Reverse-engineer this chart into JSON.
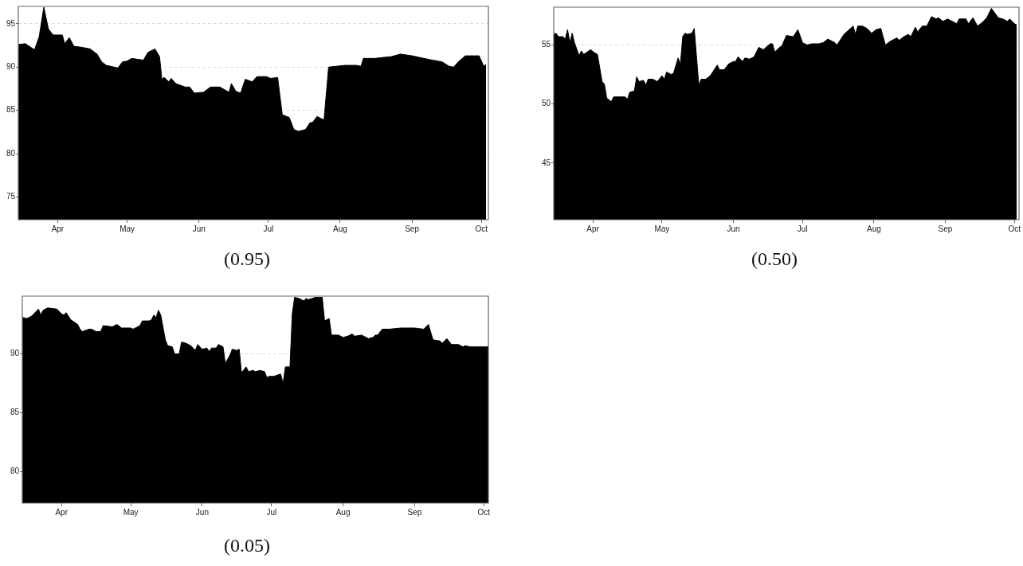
{
  "chart_data": [
    {
      "type": "area",
      "annotations": [
        "(0.95)"
      ],
      "color": "#000000",
      "grid": "y",
      "xlim": [
        "--03-15",
        "--10-04"
      ],
      "xticks": [
        {
          "value": "--04-01",
          "label": "Apr"
        },
        {
          "value": "--05-01",
          "label": "May"
        },
        {
          "value": "--06-01",
          "label": "Jun"
        },
        {
          "value": "--07-01",
          "label": "Jul"
        },
        {
          "value": "--08-01",
          "label": "Aug"
        },
        {
          "value": "--09-01",
          "label": "Sep"
        },
        {
          "value": "--10-01",
          "label": "Oct"
        }
      ],
      "ylim": [
        72.4,
        97.0
      ],
      "yticks": [
        75,
        80,
        85,
        90,
        95
      ],
      "x": [
        "--03-15",
        "--03-18",
        "--03-22",
        "--03-24",
        "--03-26",
        "--03-28",
        "--03-30",
        "--04-03",
        "--04-04",
        "--04-06",
        "--04-08",
        "--04-11",
        "--04-15",
        "--04-18",
        "--04-20",
        "--04-22",
        "--04-27",
        "--04-29",
        "--05-01",
        "--05-03",
        "--05-08",
        "--05-10",
        "--05-13",
        "--05-15",
        "--05-16",
        "--05-17",
        "--05-19",
        "--05-20",
        "--05-22",
        "--05-26",
        "--05-28",
        "--05-30",
        "--06-03",
        "--06-06",
        "--06-10",
        "--06-14",
        "--06-15",
        "--06-17",
        "--06-19",
        "--06-21",
        "--06-24",
        "--06-26",
        "--06-30",
        "--07-02",
        "--07-05",
        "--07-07",
        "--07-10",
        "--07-12",
        "--07-14",
        "--07-17",
        "--07-19",
        "--07-20",
        "--07-22",
        "--07-25",
        "--07-27",
        "--08-03",
        "--08-08",
        "--08-10",
        "--08-11",
        "--08-16",
        "--08-19",
        "--08-23",
        "--08-27",
        "--09-01",
        "--09-08",
        "--09-14",
        "--09-17",
        "--09-19",
        "--09-21",
        "--09-24",
        "--09-30",
        "--10-02",
        "--10-03"
      ],
      "values": [
        92.6,
        92.7,
        92.0,
        93.5,
        96.9,
        94.4,
        93.7,
        93.7,
        92.7,
        93.4,
        92.4,
        92.3,
        92.1,
        91.5,
        90.6,
        90.2,
        89.9,
        90.6,
        90.7,
        91.0,
        90.8,
        91.7,
        92.1,
        91.2,
        88.6,
        88.8,
        88.3,
        88.7,
        88.1,
        87.7,
        87.7,
        87.0,
        87.1,
        87.7,
        87.7,
        87.1,
        88.1,
        87.2,
        87.0,
        88.6,
        88.3,
        88.9,
        88.9,
        88.7,
        88.8,
        84.5,
        84.2,
        82.8,
        82.6,
        82.8,
        83.6,
        83.6,
        84.3,
        83.9,
        90.0,
        90.2,
        90.2,
        90.1,
        91.0,
        91.0,
        91.1,
        91.2,
        91.5,
        91.3,
        90.9,
        90.6,
        90.1,
        90.0,
        90.6,
        91.3,
        91.3,
        90.1,
        90.3
      ]
    },
    {
      "type": "area",
      "annotations": [
        "(0.50)"
      ],
      "color": "#000000",
      "grid": "y",
      "xlim": [
        "--03-15",
        "--10-03"
      ],
      "xticks": [
        {
          "value": "--04-01",
          "label": "Apr"
        },
        {
          "value": "--05-01",
          "label": "May"
        },
        {
          "value": "--06-01",
          "label": "Jun"
        },
        {
          "value": "--07-01",
          "label": "Jul"
        },
        {
          "value": "--08-01",
          "label": "Aug"
        },
        {
          "value": "--09-01",
          "label": "Sep"
        },
        {
          "value": "--10-01",
          "label": "Oct"
        }
      ],
      "ylim": [
        40.2,
        58.2
      ],
      "yticks": [
        45,
        50,
        55
      ],
      "x": [
        "--03-15",
        "--03-16",
        "--03-17",
        "--03-19",
        "--03-20",
        "--03-21",
        "--03-22",
        "--03-23",
        "--03-24",
        "--03-26",
        "--03-27",
        "--03-28",
        "--03-31",
        "--04-02",
        "--04-03",
        "--04-05",
        "--04-06",
        "--04-07",
        "--04-09",
        "--04-10",
        "--04-15",
        "--04-16",
        "--04-17",
        "--04-19",
        "--04-20",
        "--04-21",
        "--04-23",
        "--04-24",
        "--04-25",
        "--04-27",
        "--04-29",
        "--05-01",
        "--05-02",
        "--05-03",
        "--05-05",
        "--05-06",
        "--05-08",
        "--05-09",
        "--05-10",
        "--05-11",
        "--05-12",
        "--05-14",
        "--05-15",
        "--05-17",
        "--05-18",
        "--05-20",
        "--05-22",
        "--05-23",
        "--05-25",
        "--05-26",
        "--05-28",
        "--05-30",
        "--06-01",
        "--06-02",
        "--06-03",
        "--06-05",
        "--06-06",
        "--06-08",
        "--06-10",
        "--06-12",
        "--06-14",
        "--06-17",
        "--06-18",
        "--06-19",
        "--06-21",
        "--06-22",
        "--06-24",
        "--06-27",
        "--06-29",
        "--07-01",
        "--07-03",
        "--07-05",
        "--07-08",
        "--07-10",
        "--07-12",
        "--07-15",
        "--07-16",
        "--07-19",
        "--07-23",
        "--07-24",
        "--07-25",
        "--07-27",
        "--07-29",
        "--07-31",
        "--08-02",
        "--08-04",
        "--08-06",
        "--08-08",
        "--08-11",
        "--08-12",
        "--08-14",
        "--08-16",
        "--08-17",
        "--08-19",
        "--08-20",
        "--08-22",
        "--08-24",
        "--08-26",
        "--08-28",
        "--08-29",
        "--08-31",
        "--09-02",
        "--09-06",
        "--09-07",
        "--09-10",
        "--09-11",
        "--09-13",
        "--09-15",
        "--09-17",
        "--09-19",
        "--09-21",
        "--09-24",
        "--09-26",
        "--09-28",
        "--09-29",
        "--10-01",
        "--10-02"
      ],
      "values": [
        55.9,
        56.0,
        55.7,
        55.7,
        55.5,
        56.3,
        55.2,
        56.0,
        55.2,
        54.1,
        54.5,
        54.2,
        54.6,
        54.3,
        54.2,
        51.9,
        51.7,
        50.5,
        50.2,
        50.6,
        50.6,
        50.4,
        51.0,
        51.1,
        52.3,
        51.9,
        52.0,
        51.6,
        52.1,
        52.1,
        51.9,
        52.4,
        52.1,
        52.7,
        52.5,
        52.6,
        53.9,
        53.4,
        55.7,
        56.0,
        55.9,
        56.0,
        56.4,
        51.6,
        52.1,
        52.1,
        52.4,
        52.7,
        53.3,
        52.9,
        52.9,
        53.4,
        53.6,
        53.6,
        54.0,
        53.6,
        53.9,
        53.8,
        54.0,
        54.8,
        54.6,
        55.1,
        55.1,
        54.4,
        54.8,
        54.9,
        55.8,
        55.7,
        56.3,
        55.2,
        55.0,
        55.1,
        55.1,
        55.2,
        55.5,
        55.2,
        55.0,
        55.9,
        56.6,
        55.9,
        56.6,
        56.6,
        56.4,
        56.0,
        56.3,
        56.4,
        55.0,
        55.3,
        55.6,
        55.4,
        55.7,
        55.9,
        55.7,
        56.5,
        56.1,
        56.6,
        56.6,
        57.4,
        57.2,
        57.3,
        57.0,
        57.2,
        56.8,
        57.2,
        57.2,
        56.8,
        57.3,
        56.6,
        56.9,
        57.3,
        58.1,
        57.3,
        57.2,
        57.0,
        57.2,
        56.8,
        56.7
      ]
    },
    {
      "type": "area",
      "annotations": [
        "(0.05)"
      ],
      "color": "#000000",
      "grid": "y",
      "xlim": [
        "--03-15",
        "--10-03"
      ],
      "xticks": [
        {
          "value": "--04-01",
          "label": "Apr"
        },
        {
          "value": "--05-01",
          "label": "May"
        },
        {
          "value": "--06-01",
          "label": "Jun"
        },
        {
          "value": "--07-01",
          "label": "Jul"
        },
        {
          "value": "--08-01",
          "label": "Aug"
        },
        {
          "value": "--09-01",
          "label": "Sep"
        },
        {
          "value": "--10-01",
          "label": "Oct"
        }
      ],
      "ylim": [
        77.35,
        94.9
      ],
      "yticks": [
        80,
        85,
        90
      ],
      "x": [
        "--03-15",
        "--03-17",
        "--03-19",
        "--03-22",
        "--03-23",
        "--03-24",
        "--03-26",
        "--03-30",
        "--04-01",
        "--04-02",
        "--04-03",
        "--04-05",
        "--04-08",
        "--04-09",
        "--04-10",
        "--04-13",
        "--04-14",
        "--04-16",
        "--04-18",
        "--04-19",
        "--04-23",
        "--04-25",
        "--04-27",
        "--05-01",
        "--05-02",
        "--05-05",
        "--05-06",
        "--05-09",
        "--05-10",
        "--05-11",
        "--05-12",
        "--05-13",
        "--05-14",
        "--05-16",
        "--05-17",
        "--05-19",
        "--05-20",
        "--05-22",
        "--05-23",
        "--05-25",
        "--05-27",
        "--05-29",
        "--05-30",
        "--06-01",
        "--06-03",
        "--06-04",
        "--06-05",
        "--06-07",
        "--06-08",
        "--06-10",
        "--06-11",
        "--06-13",
        "--06-14",
        "--06-16",
        "--06-17",
        "--06-18",
        "--06-20",
        "--06-21",
        "--06-23",
        "--06-24",
        "--06-26",
        "--06-28",
        "--06-29",
        "--06-30",
        "--07-02",
        "--07-05",
        "--07-06",
        "--07-07",
        "--07-09",
        "--07-10",
        "--07-11",
        "--07-13",
        "--07-15",
        "--07-16",
        "--07-17",
        "--07-20",
        "--07-22",
        "--07-23",
        "--07-24",
        "--07-26",
        "--07-27",
        "--07-30",
        "--08-01",
        "--08-03",
        "--08-05",
        "--08-06",
        "--08-09",
        "--08-12",
        "--08-14",
        "--08-15",
        "--08-16",
        "--08-18",
        "--08-21",
        "--08-26",
        "--09-01",
        "--09-05",
        "--09-07",
        "--09-09",
        "--09-12",
        "--09-13",
        "--09-15",
        "--09-17",
        "--09-20",
        "--09-22",
        "--09-23",
        "--09-25",
        "--09-28",
        "--10-01",
        "--10-03"
      ],
      "values": [
        93.1,
        93.0,
        93.2,
        93.8,
        93.3,
        93.7,
        93.9,
        93.8,
        93.4,
        93.3,
        93.5,
        92.9,
        92.5,
        92.1,
        91.9,
        92.1,
        92.1,
        91.9,
        91.9,
        92.4,
        92.3,
        92.5,
        92.2,
        92.2,
        92.1,
        92.4,
        92.8,
        92.8,
        92.9,
        93.3,
        93.1,
        93.7,
        93.3,
        91.2,
        90.7,
        90.6,
        90.0,
        90.0,
        91.0,
        90.9,
        90.7,
        90.3,
        90.8,
        90.4,
        90.5,
        90.2,
        90.5,
        90.5,
        90.8,
        90.6,
        89.2,
        89.9,
        90.4,
        90.3,
        90.4,
        88.4,
        88.9,
        88.5,
        88.6,
        88.5,
        88.6,
        88.5,
        88.0,
        88.1,
        88.1,
        88.3,
        87.5,
        88.9,
        88.9,
        93.4,
        94.8,
        94.7,
        94.5,
        94.7,
        94.6,
        94.8,
        94.8,
        94.8,
        92.8,
        93.0,
        91.6,
        91.6,
        91.4,
        91.5,
        91.7,
        91.5,
        91.6,
        91.3,
        91.4,
        91.6,
        91.6,
        92.1,
        92.1,
        92.2,
        92.2,
        92.1,
        92.5,
        91.2,
        91.1,
        90.9,
        91.3,
        90.8,
        90.8,
        90.6,
        90.7,
        90.6,
        90.6,
        90.6,
        90.6
      ]
    }
  ]
}
